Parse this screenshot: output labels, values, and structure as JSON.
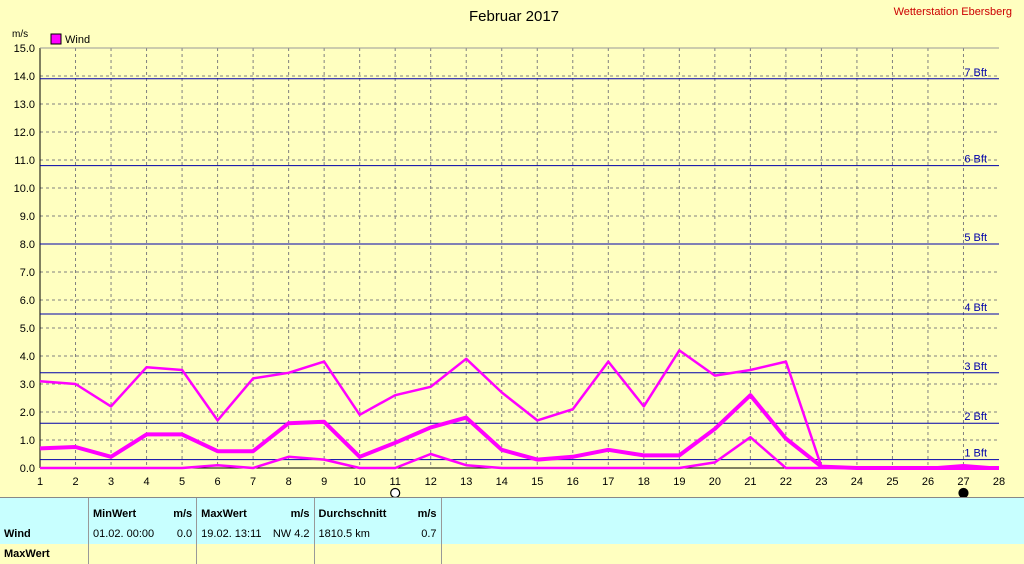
{
  "header": {
    "title": "Februar 2017",
    "station": "Wetterstation Ebersberg",
    "unit": "m/s",
    "legend_label": "Wind"
  },
  "colors": {
    "background": "#ffffc0",
    "series": "#ff00ff",
    "grid": "#808080",
    "beaufort": "#0000aa",
    "station": "#cc0000",
    "table_bg": "#c8ffff"
  },
  "chart_data": {
    "type": "line",
    "xlim": [
      1,
      28
    ],
    "ylim": [
      0,
      15
    ],
    "x": [
      1,
      2,
      3,
      4,
      5,
      6,
      7,
      8,
      9,
      10,
      11,
      12,
      13,
      14,
      15,
      16,
      17,
      18,
      19,
      20,
      21,
      22,
      23,
      24,
      25,
      26,
      27,
      28
    ],
    "x_ticks": [
      "1",
      "2",
      "3",
      "4",
      "5",
      "6",
      "7",
      "8",
      "9",
      "10",
      "11",
      "12",
      "13",
      "14",
      "15",
      "16",
      "17",
      "18",
      "19",
      "20",
      "21",
      "22",
      "23",
      "24",
      "25",
      "26",
      "27",
      "28"
    ],
    "y_ticks": [
      "0.0",
      "1.0",
      "2.0",
      "3.0",
      "4.0",
      "5.0",
      "6.0",
      "7.0",
      "8.0",
      "9.0",
      "10.0",
      "11.0",
      "12.0",
      "13.0",
      "14.0",
      "15.0"
    ],
    "grid": true,
    "legend": "top-left",
    "series": [
      {
        "name": "Wind",
        "role": "max",
        "width": 2.5,
        "values": [
          3.1,
          3.0,
          2.2,
          3.6,
          3.5,
          1.7,
          3.2,
          3.4,
          3.8,
          1.9,
          2.6,
          2.9,
          3.9,
          2.7,
          1.7,
          2.1,
          3.8,
          2.2,
          4.2,
          3.3,
          3.5,
          3.8,
          0.05,
          0.0,
          0.0,
          0.0,
          0.0,
          0.0
        ]
      },
      {
        "role": "mean",
        "width": 4,
        "values": [
          0.7,
          0.75,
          0.4,
          1.2,
          1.2,
          0.6,
          0.6,
          1.6,
          1.65,
          0.4,
          0.9,
          1.45,
          1.8,
          0.65,
          0.3,
          0.4,
          0.65,
          0.45,
          0.45,
          1.4,
          2.6,
          1.05,
          0.05,
          0.0,
          0.0,
          0.0,
          0.0,
          0.0
        ]
      },
      {
        "role": "min",
        "width": 2.5,
        "values": [
          0.0,
          0.0,
          0.0,
          0.0,
          0.0,
          0.1,
          0.0,
          0.4,
          0.3,
          0.0,
          0.0,
          0.5,
          0.1,
          0.0,
          0.0,
          0.0,
          0.0,
          0.0,
          0.0,
          0.2,
          1.1,
          0.0,
          0.0,
          0.0,
          0.0,
          0.0,
          0.1,
          0.0
        ]
      }
    ],
    "beaufort_lines": [
      {
        "label": "1 Bft",
        "value": 0.3
      },
      {
        "label": "2 Bft",
        "value": 1.6
      },
      {
        "label": "3 Bft",
        "value": 3.4
      },
      {
        "label": "4 Bft",
        "value": 5.5
      },
      {
        "label": "5 Bft",
        "value": 8.0
      },
      {
        "label": "6 Bft",
        "value": 10.8
      },
      {
        "label": "7 Bft",
        "value": 13.9
      }
    ],
    "moon_phases": [
      {
        "day": 11,
        "phase": "full-moon"
      },
      {
        "day": 27,
        "phase": "new-moon"
      }
    ]
  },
  "table": {
    "headers": {
      "min": "MinWert",
      "min_unit": "m/s",
      "max": "MaxWert",
      "max_unit": "m/s",
      "avg": "Durchschnitt",
      "avg_unit": "m/s"
    },
    "rows": [
      {
        "label": "Wind",
        "min_time": "01.02.  00:00",
        "min_value": "0.0",
        "max_time": "19.02.  13:11",
        "max_value": "NW 4.2",
        "avg_distance": "1810.5 km",
        "avg_value": "0.7"
      },
      {
        "label": "MaxWert"
      }
    ]
  }
}
